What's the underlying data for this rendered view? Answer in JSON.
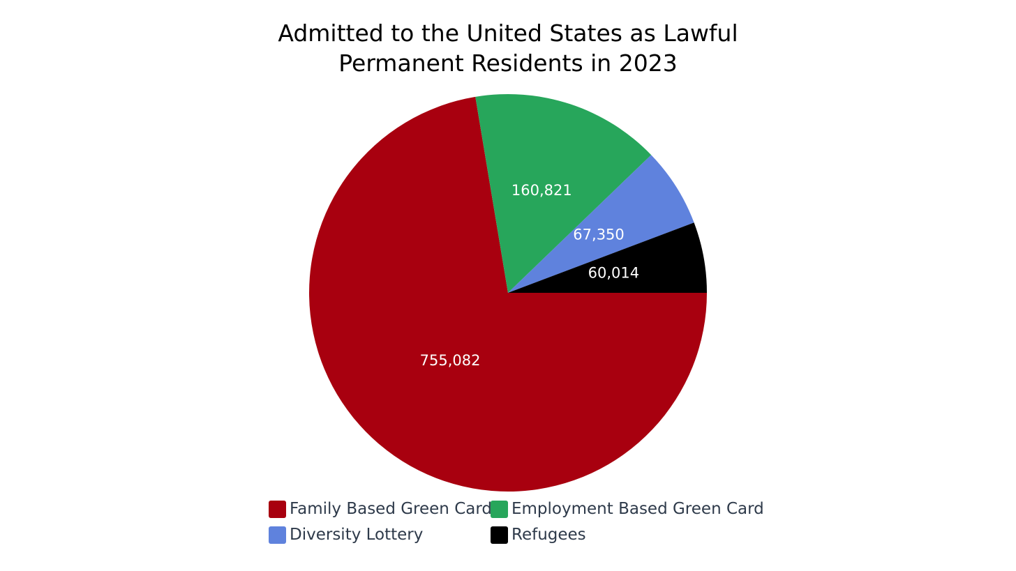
{
  "chart_data": {
    "type": "pie",
    "title_lines": [
      "Admitted to the United States as Lawful",
      "Permanent Residents in 2023"
    ],
    "slices": [
      {
        "label": "Family Based Green Card",
        "value": 755082,
        "value_label": "755,082",
        "color": "#a8000f"
      },
      {
        "label": "Employment Based Green Card",
        "value": 160821,
        "value_label": "160,821",
        "color": "#27a65b"
      },
      {
        "label": "Diversity Lottery",
        "value": 67350,
        "value_label": "67,350",
        "color": "#5f82dd"
      },
      {
        "label": "Refugees",
        "value": 60014,
        "value_label": "60,014",
        "color": "#000000"
      }
    ],
    "legend_position": "bottom",
    "label_color": "#ffffff"
  }
}
